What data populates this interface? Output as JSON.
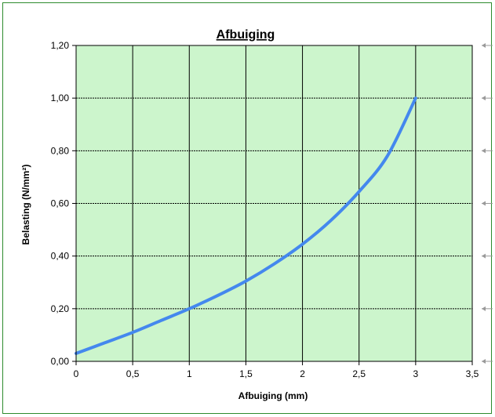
{
  "chart_data": {
    "type": "line",
    "title": "Afbuiging",
    "xlabel": "Afbuiging (mm)",
    "ylabel": "Belasting (N/mm²)",
    "xlim": [
      0,
      3.5
    ],
    "ylim": [
      0,
      1.2
    ],
    "x_ticks": [
      "0",
      "0,5",
      "1",
      "1,5",
      "2",
      "2,5",
      "3",
      "3,5"
    ],
    "y_ticks": [
      "0,00",
      "0,20",
      "0,40",
      "0,60",
      "0,80",
      "1,00",
      "1,20"
    ],
    "grid": true,
    "plot_background": "#ccf5cc",
    "series": [
      {
        "color": "#4488ee",
        "x": [
          0,
          0.25,
          0.5,
          0.75,
          1.0,
          1.25,
          1.5,
          1.75,
          2.0,
          2.25,
          2.5,
          2.75,
          3.0
        ],
        "y": [
          0.03,
          0.07,
          0.11,
          0.155,
          0.2,
          0.25,
          0.305,
          0.37,
          0.445,
          0.535,
          0.645,
          0.78,
          1.0
        ]
      }
    ]
  }
}
